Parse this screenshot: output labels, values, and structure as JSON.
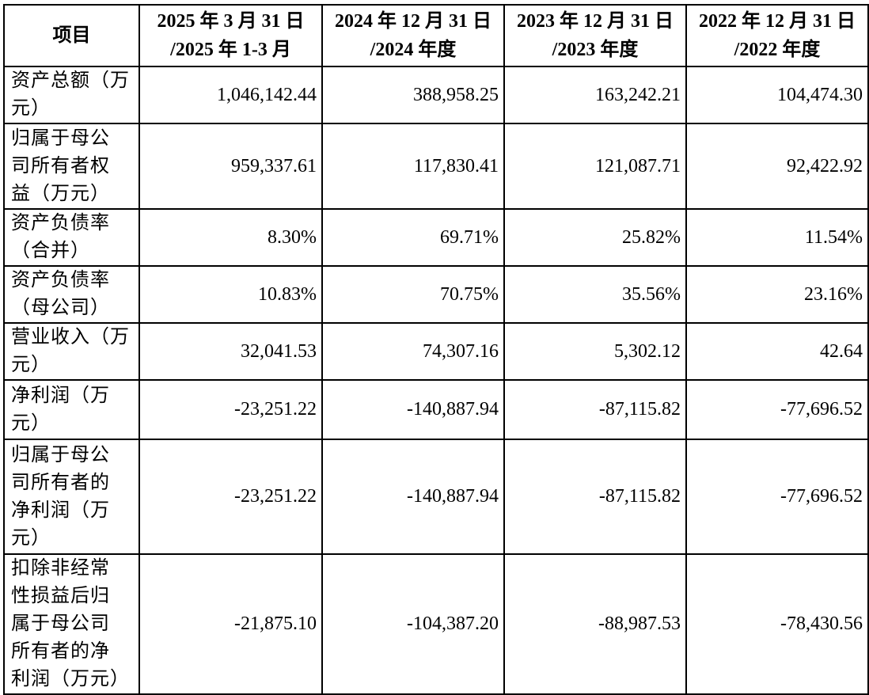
{
  "header": {
    "item": "项目",
    "columns": [
      {
        "line1": "2025 年 3 月 31 日",
        "line2": "/2025 年 1-3 月"
      },
      {
        "line1": "2024 年 12 月 31 日",
        "line2": "/2024 年度"
      },
      {
        "line1": "2023 年 12 月 31 日",
        "line2": "/2023 年度"
      },
      {
        "line1": "2022 年 12 月 31 日",
        "line2": "/2022 年度"
      }
    ]
  },
  "rows": [
    {
      "label": [
        "资产总额（万",
        "元）"
      ],
      "values": [
        "1,046,142.44",
        "388,958.25",
        "163,242.21",
        "104,474.30"
      ]
    },
    {
      "label": [
        "归属于母公",
        "司所有者权",
        "益（万元）"
      ],
      "values": [
        "959,337.61",
        "117,830.41",
        "121,087.71",
        "92,422.92"
      ]
    },
    {
      "label": [
        "资产负债率",
        "（合并）"
      ],
      "values": [
        "8.30%",
        "69.71%",
        "25.82%",
        "11.54%"
      ]
    },
    {
      "label": [
        "资产负债率",
        "（母公司）"
      ],
      "values": [
        "10.83%",
        "70.75%",
        "35.56%",
        "23.16%"
      ]
    },
    {
      "label": [
        "营业收入（万",
        "元）"
      ],
      "values": [
        "32,041.53",
        "74,307.16",
        "5,302.12",
        "42.64"
      ]
    },
    {
      "label": [
        "净利润（万",
        "元）"
      ],
      "values": [
        "-23,251.22",
        "-140,887.94",
        "-87,115.82",
        "-77,696.52"
      ]
    },
    {
      "label": [
        "归属于母公",
        "司所有者的",
        "净利润（万",
        "元）"
      ],
      "values": [
        "-23,251.22",
        "-140,887.94",
        "-87,115.82",
        "-77,696.52"
      ]
    },
    {
      "label": [
        "扣除非经常",
        "性损益后归",
        "属于母公司",
        "所有者的净",
        "利润（万元）"
      ],
      "values": [
        "-21,875.10",
        "-104,387.20",
        "-88,987.53",
        "-78,430.56"
      ]
    }
  ]
}
